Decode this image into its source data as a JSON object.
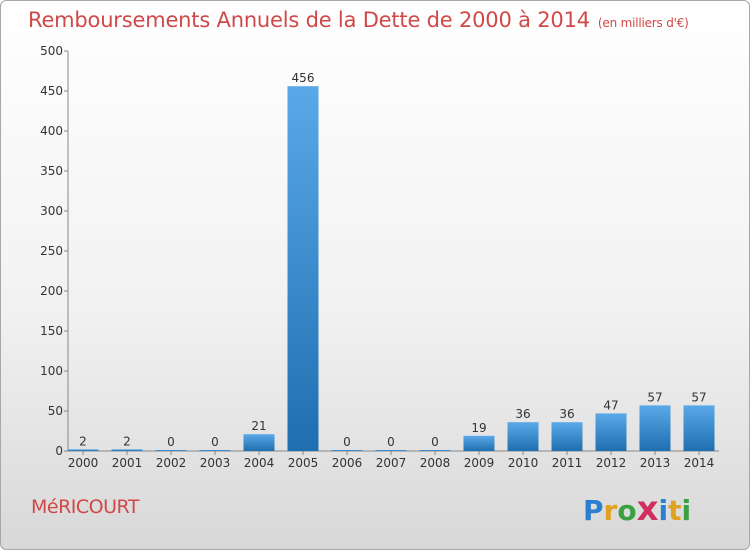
{
  "chart_data": {
    "type": "bar",
    "title": "Remboursements Annuels de la Dette de 2000 à 2014",
    "unit": "(en milliers d'€)",
    "categories": [
      "2000",
      "2001",
      "2002",
      "2003",
      "2004",
      "2005",
      "2006",
      "2007",
      "2008",
      "2009",
      "2010",
      "2011",
      "2012",
      "2013",
      "2014"
    ],
    "values": [
      2,
      2,
      0,
      0,
      21,
      456,
      0,
      0,
      0,
      19,
      36,
      36,
      47,
      57,
      57
    ],
    "data_labels": [
      "2",
      "2",
      "0",
      "0",
      "21",
      "456",
      "0",
      "0",
      "0",
      "19",
      "36",
      "36",
      "47",
      "57",
      "57"
    ],
    "ylim": [
      0,
      500
    ],
    "yticks": [
      0,
      50,
      100,
      150,
      200,
      250,
      300,
      350,
      400,
      450,
      500
    ],
    "grid": false,
    "bar_color_light": "#5aa8e8",
    "bar_color_dark": "#1f6fb0"
  },
  "commune": "MéRICOURT",
  "logo": {
    "letters": [
      "P",
      "r",
      "o",
      "x",
      "i",
      "t",
      "i"
    ],
    "colors": [
      "#2a7fd0",
      "#e0a020",
      "#3aa040",
      "#d03060",
      "#2a7fd0",
      "#e0a020",
      "#3aa040"
    ]
  },
  "colors": {
    "title": "#d04848"
  }
}
